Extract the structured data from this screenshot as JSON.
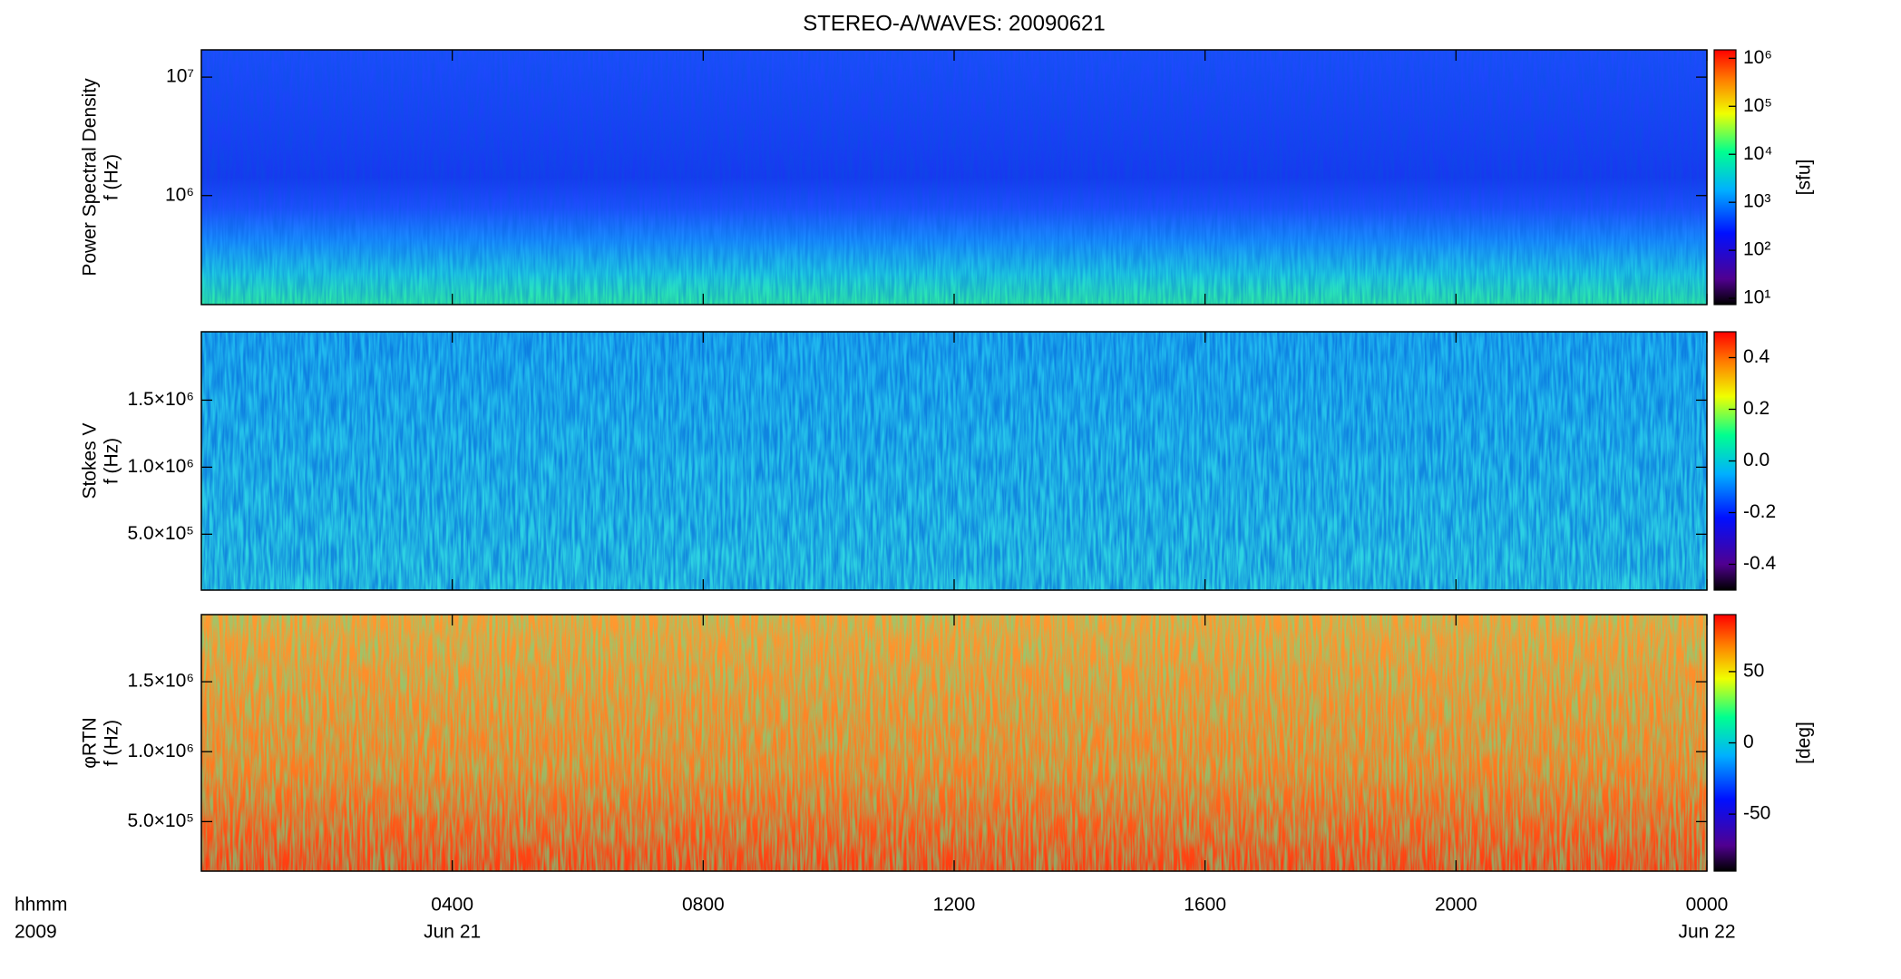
{
  "chart_data": [
    {
      "type": "spectrogram",
      "title": "STEREO-A/WAVES: 20090621",
      "ylabel": [
        "Power Spectral Density",
        "f (Hz)"
      ],
      "ylog": true,
      "ylim": [
        120000,
        17000000
      ],
      "yticks": [
        {
          "value": 1000000,
          "label": "10⁶"
        },
        {
          "value": 10000000,
          "label": "10⁷"
        }
      ],
      "colorbar": {
        "log": true,
        "lim": [
          7.4,
          1500000
        ],
        "label": "[sfu]",
        "ticks": [
          {
            "value": 10,
            "label": "10¹"
          },
          {
            "value": 100,
            "label": "10²"
          },
          {
            "value": 1000,
            "label": "10³"
          },
          {
            "value": 10000,
            "label": "10⁴"
          },
          {
            "value": 100000,
            "label": "10⁵"
          },
          {
            "value": 1000000,
            "label": "10⁶"
          }
        ]
      }
    },
    {
      "type": "spectrogram",
      "ylabel": [
        "Stokes V",
        "f (Hz)"
      ],
      "ylog": false,
      "ylim": [
        83000,
        2010000
      ],
      "yticks": [
        {
          "value": 500000,
          "label": "5.0×10⁵"
        },
        {
          "value": 1000000,
          "label": "1.0×10⁶"
        },
        {
          "value": 1500000,
          "label": "1.5×10⁶"
        }
      ],
      "colorbar": {
        "log": false,
        "lim": [
          -0.5,
          0.5
        ],
        "ticks": [
          -0.4,
          -0.2,
          {
            "value": 0,
            "label": "0.0"
          },
          0.2,
          0.4
        ]
      }
    },
    {
      "type": "spectrogram",
      "ylabel": [
        "φRTN",
        "f (Hz)"
      ],
      "ylog": false,
      "ylim": [
        146000,
        1980000
      ],
      "yticks": [
        {
          "value": 500000,
          "label": "5.0×10⁵"
        },
        {
          "value": 1000000,
          "label": "1.0×10⁶"
        },
        {
          "value": 1500000,
          "label": "1.5×10⁶"
        }
      ],
      "colorbar": {
        "log": false,
        "lim": [
          -90,
          90
        ],
        "label": "[deg]",
        "ticks": [
          -50,
          0,
          50
        ]
      },
      "xlim": [
        0,
        24
      ],
      "xticks": [
        {
          "value": 4,
          "label": "0400"
        },
        {
          "value": 8,
          "label": "0800"
        },
        {
          "value": 12,
          "label": "1200"
        },
        {
          "value": 16,
          "label": "1600"
        },
        {
          "value": 20,
          "label": "2000"
        },
        {
          "value": 24,
          "label": "0000"
        }
      ],
      "date_labels": [
        {
          "value": 4,
          "label": "Jun 21"
        },
        {
          "value": 24,
          "label": "Jun 22"
        }
      ],
      "x_axis_labels": [
        "hhmm",
        "2009"
      ]
    }
  ]
}
